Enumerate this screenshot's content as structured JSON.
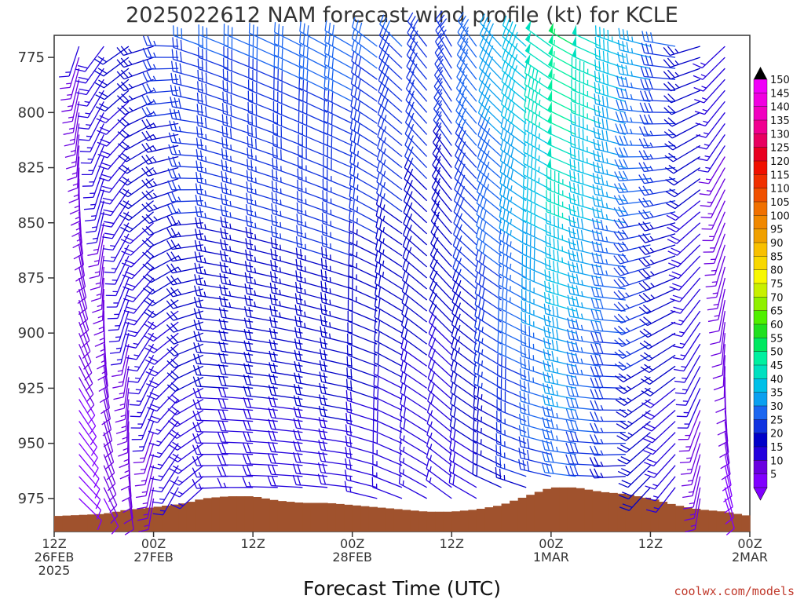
{
  "chart_data": {
    "type": "wind-barb-time-height",
    "title": "2025022612 NAM forecast wind profile (kt) for KCLE",
    "xlabel": "Forecast Time (UTC)",
    "credit": "coolwx.com/models",
    "x_ticks": [
      {
        "hour": 0,
        "lines": [
          "12Z",
          "26FEB",
          "2025"
        ]
      },
      {
        "hour": 12,
        "lines": [
          "00Z",
          "27FEB"
        ]
      },
      {
        "hour": 24,
        "lines": [
          "12Z"
        ]
      },
      {
        "hour": 36,
        "lines": [
          "00Z",
          "28FEB"
        ]
      },
      {
        "hour": 48,
        "lines": [
          "12Z"
        ]
      },
      {
        "hour": 60,
        "lines": [
          "00Z",
          "1MAR"
        ]
      },
      {
        "hour": 72,
        "lines": [
          "12Z"
        ]
      },
      {
        "hour": 84,
        "lines": [
          "00Z",
          "2MAR"
        ]
      }
    ],
    "xlim_hours": [
      0,
      84
    ],
    "y_ticks": [
      775,
      800,
      825,
      850,
      875,
      900,
      925,
      950,
      975
    ],
    "ylim_hpa": [
      765,
      990
    ],
    "pressure_levels_hpa": [
      770,
      775,
      780,
      785,
      790,
      795,
      800,
      805,
      810,
      815,
      820,
      825,
      830,
      835,
      840,
      845,
      850,
      855,
      860,
      865,
      870,
      875,
      880,
      885,
      890,
      895,
      900,
      905,
      910,
      915,
      920,
      925,
      930,
      935,
      940,
      945,
      950,
      955,
      960,
      965,
      970,
      975
    ],
    "time_step_hours": 3,
    "colorbar": {
      "values": [
        5,
        10,
        15,
        20,
        25,
        30,
        35,
        40,
        45,
        50,
        55,
        60,
        65,
        70,
        75,
        80,
        85,
        90,
        95,
        100,
        105,
        110,
        115,
        120,
        125,
        130,
        135,
        140,
        145,
        150
      ],
      "colors": [
        "#8000ff",
        "#6a00e0",
        "#2200dd",
        "#0000c8",
        "#1033e0",
        "#1a66f0",
        "#0aa0f0",
        "#00c0e8",
        "#00e0c0",
        "#00f0a0",
        "#00e860",
        "#20e020",
        "#50f000",
        "#90f000",
        "#c8f000",
        "#f8f800",
        "#f8d800",
        "#f8c000",
        "#f0a000",
        "#f08800",
        "#f07000",
        "#f05000",
        "#f03000",
        "#f01000",
        "#e80020",
        "#e80060",
        "#f00090",
        "#f000c0",
        "#f000e0",
        "#f000f8"
      ]
    },
    "terrain_color": "#a0522d",
    "terrain_surface_hpa": [
      {
        "hour": 0,
        "hpa": 983
      },
      {
        "hour": 6,
        "hpa": 982
      },
      {
        "hour": 9,
        "hpa": 980
      },
      {
        "hour": 12,
        "hpa": 979
      },
      {
        "hour": 16,
        "hpa": 977
      },
      {
        "hour": 18,
        "hpa": 975
      },
      {
        "hour": 21,
        "hpa": 974
      },
      {
        "hour": 24,
        "hpa": 974
      },
      {
        "hour": 27,
        "hpa": 976
      },
      {
        "hour": 30,
        "hpa": 977
      },
      {
        "hour": 33,
        "hpa": 977
      },
      {
        "hour": 36,
        "hpa": 978
      },
      {
        "hour": 39,
        "hpa": 979
      },
      {
        "hour": 42,
        "hpa": 980
      },
      {
        "hour": 45,
        "hpa": 981
      },
      {
        "hour": 48,
        "hpa": 981
      },
      {
        "hour": 51,
        "hpa": 980
      },
      {
        "hour": 54,
        "hpa": 978
      },
      {
        "hour": 57,
        "hpa": 974
      },
      {
        "hour": 60,
        "hpa": 970
      },
      {
        "hour": 63,
        "hpa": 970
      },
      {
        "hour": 66,
        "hpa": 972
      },
      {
        "hour": 69,
        "hpa": 973
      },
      {
        "hour": 72,
        "hpa": 975
      },
      {
        "hour": 75,
        "hpa": 978
      },
      {
        "hour": 78,
        "hpa": 980
      },
      {
        "hour": 81,
        "hpa": 981
      },
      {
        "hour": 84,
        "hpa": 983
      }
    ],
    "wind_phases_hint": [
      {
        "hour": 0,
        "speed_kt": 12,
        "dir_deg": 180,
        "note": "weak southerly near start"
      },
      {
        "hour": 18,
        "speed_kt": 30,
        "dir_deg": 290
      },
      {
        "hour": 36,
        "speed_kt": 32,
        "dir_deg": 300
      },
      {
        "hour": 48,
        "speed_kt": 28,
        "dir_deg": 330
      },
      {
        "hour": 63,
        "speed_kt": 55,
        "dir_deg": 300
      },
      {
        "hour": 75,
        "speed_kt": 30,
        "dir_deg": 280
      },
      {
        "hour": 84,
        "speed_kt": 10,
        "dir_deg": 200
      }
    ]
  }
}
